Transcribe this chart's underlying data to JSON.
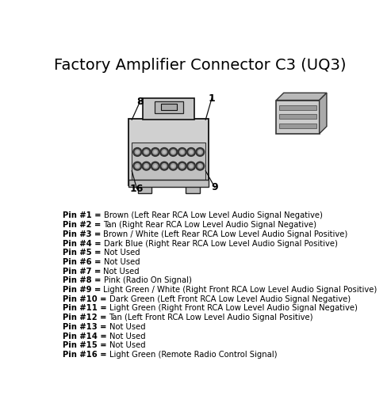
{
  "title": "Factory Amplifier Connector C3 (UQ3)",
  "title_fontsize": 14,
  "bg_color": "#ffffff",
  "text_color": "#000000",
  "pins": [
    [
      "Pin #1 = ",
      "Brown (Left Rear RCA Low Level Audio Signal Negative)"
    ],
    [
      "Pin #2 = ",
      "Tan (Right Rear RCA Low Level Audio Signal Negative)"
    ],
    [
      "Pin #3 = ",
      "Brown / White (Left Rear RCA Low Level Audio Signal Positive)"
    ],
    [
      "Pin #4 = ",
      "Dark Blue (Right Rear RCA Low Level Audio Signal Positive)"
    ],
    [
      "Pin #5 = ",
      "Not Used"
    ],
    [
      "Pin #6 = ",
      "Not Used"
    ],
    [
      "Pin #7 = ",
      "Not Used"
    ],
    [
      "Pin #8 = ",
      "Pink (Radio On Signal)"
    ],
    [
      "Pin #9 = ",
      "Light Green / White (Right Front RCA Low Level Audio Signal Positive)"
    ],
    [
      "Pin #10 = ",
      "Dark Green (Left Front RCA Low Level Audio Signal Negative)"
    ],
    [
      "Pin #11 = ",
      "Light Green (Right Front RCA Low Level Audio Signal Negative)"
    ],
    [
      "Pin #12 = ",
      "Tan (Left Front RCA Low Level Audio Signal Positive)"
    ],
    [
      "Pin #13 = ",
      "Not Used"
    ],
    [
      "Pin #14 = ",
      "Not Used"
    ],
    [
      "Pin #15 = ",
      "Not Used"
    ],
    [
      "Pin #16 = ",
      "Light Green (Remote Radio Control Signal)"
    ]
  ],
  "pin_fontsize": 7.2
}
